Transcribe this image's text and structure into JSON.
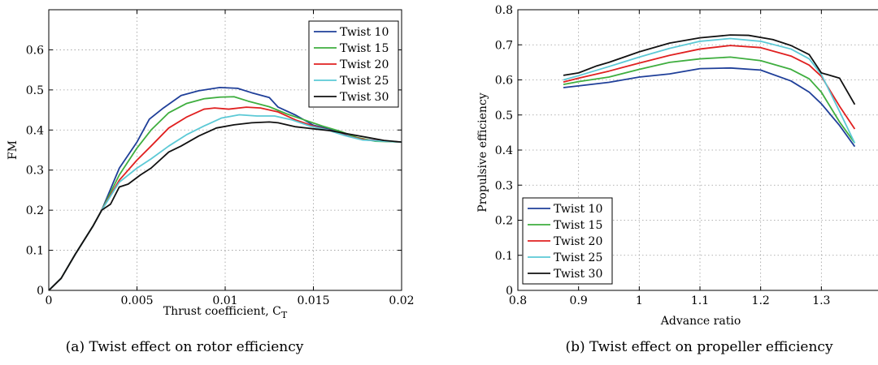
{
  "chart_data": [
    {
      "type": "line",
      "caption": "(a) Twist effect on rotor efficiency",
      "xlabel": "Thrust coefficient, C",
      "xlabel_sub": "T",
      "ylabel": "FM",
      "xlim": [
        0,
        0.02
      ],
      "ylim": [
        0,
        0.7
      ],
      "xticks": [
        0,
        0.005,
        0.01,
        0.015,
        0.02
      ],
      "xtick_labels": [
        "0",
        "0.005",
        "0.01",
        "0.015",
        "0.02"
      ],
      "yticks": [
        0,
        0.1,
        0.2,
        0.3,
        0.4,
        0.5,
        0.6
      ],
      "ytick_labels": [
        "0",
        "0.1",
        "0.2",
        "0.3",
        "0.4",
        "0.5",
        "0.6"
      ],
      "grid": true,
      "legend_position": "top-right",
      "series": [
        {
          "name": "Twist 10",
          "color": "#1f3f99",
          "points": [
            [
              0,
              0
            ],
            [
              0.0007,
              0.03
            ],
            [
              0.0015,
              0.09
            ],
            [
              0.0025,
              0.16
            ],
            [
              0.003,
              0.2
            ],
            [
              0.004,
              0.305
            ],
            [
              0.005,
              0.37
            ],
            [
              0.0057,
              0.427
            ],
            [
              0.0065,
              0.455
            ],
            [
              0.0075,
              0.486
            ],
            [
              0.0085,
              0.498
            ],
            [
              0.0097,
              0.506
            ],
            [
              0.0107,
              0.504
            ],
            [
              0.0115,
              0.493
            ],
            [
              0.0125,
              0.481
            ],
            [
              0.013,
              0.457
            ],
            [
              0.014,
              0.437
            ],
            [
              0.015,
              0.412
            ],
            [
              0.016,
              0.401
            ],
            [
              0.017,
              0.385
            ],
            [
              0.018,
              0.376
            ],
            [
              0.019,
              0.372
            ],
            [
              0.02,
              0.37
            ]
          ]
        },
        {
          "name": "Twist 15",
          "color": "#3fae3f",
          "points": [
            [
              0,
              0
            ],
            [
              0.0007,
              0.03
            ],
            [
              0.0015,
              0.09
            ],
            [
              0.0025,
              0.16
            ],
            [
              0.003,
              0.2
            ],
            [
              0.004,
              0.288
            ],
            [
              0.005,
              0.355
            ],
            [
              0.0058,
              0.4
            ],
            [
              0.0068,
              0.443
            ],
            [
              0.0078,
              0.466
            ],
            [
              0.0088,
              0.478
            ],
            [
              0.0097,
              0.482
            ],
            [
              0.0105,
              0.483
            ],
            [
              0.0113,
              0.472
            ],
            [
              0.0125,
              0.458
            ],
            [
              0.0135,
              0.44
            ],
            [
              0.0145,
              0.425
            ],
            [
              0.0155,
              0.41
            ],
            [
              0.0165,
              0.397
            ],
            [
              0.0175,
              0.381
            ],
            [
              0.0185,
              0.372
            ],
            [
              0.02,
              0.37
            ]
          ]
        },
        {
          "name": "Twist 20",
          "color": "#e02020",
          "points": [
            [
              0,
              0
            ],
            [
              0.0007,
              0.03
            ],
            [
              0.0015,
              0.09
            ],
            [
              0.0025,
              0.16
            ],
            [
              0.003,
              0.2
            ],
            [
              0.004,
              0.275
            ],
            [
              0.005,
              0.325
            ],
            [
              0.0058,
              0.36
            ],
            [
              0.0068,
              0.405
            ],
            [
              0.0078,
              0.432
            ],
            [
              0.0088,
              0.452
            ],
            [
              0.0094,
              0.455
            ],
            [
              0.0102,
              0.452
            ],
            [
              0.0112,
              0.457
            ],
            [
              0.012,
              0.455
            ],
            [
              0.013,
              0.445
            ],
            [
              0.014,
              0.425
            ],
            [
              0.015,
              0.41
            ],
            [
              0.016,
              0.398
            ],
            [
              0.017,
              0.384
            ],
            [
              0.018,
              0.375
            ],
            [
              0.02,
              0.37
            ]
          ]
        },
        {
          "name": "Twist 25",
          "color": "#5cc9d6",
          "points": [
            [
              0,
              0
            ],
            [
              0.0007,
              0.03
            ],
            [
              0.0015,
              0.09
            ],
            [
              0.0025,
              0.16
            ],
            [
              0.003,
              0.2
            ],
            [
              0.004,
              0.27
            ],
            [
              0.005,
              0.305
            ],
            [
              0.0058,
              0.328
            ],
            [
              0.0068,
              0.36
            ],
            [
              0.0078,
              0.388
            ],
            [
              0.0088,
              0.41
            ],
            [
              0.0098,
              0.43
            ],
            [
              0.0108,
              0.438
            ],
            [
              0.0118,
              0.435
            ],
            [
              0.0128,
              0.435
            ],
            [
              0.0138,
              0.425
            ],
            [
              0.0148,
              0.41
            ],
            [
              0.0158,
              0.4
            ],
            [
              0.0168,
              0.386
            ],
            [
              0.0178,
              0.375
            ],
            [
              0.019,
              0.372
            ],
            [
              0.02,
              0.37
            ]
          ]
        },
        {
          "name": "Twist 30",
          "color": "#111111",
          "points": [
            [
              0,
              0
            ],
            [
              0.0007,
              0.03
            ],
            [
              0.0015,
              0.09
            ],
            [
              0.0025,
              0.16
            ],
            [
              0.003,
              0.2
            ],
            [
              0.0035,
              0.215
            ],
            [
              0.004,
              0.258
            ],
            [
              0.0045,
              0.265
            ],
            [
              0.0052,
              0.288
            ],
            [
              0.0058,
              0.305
            ],
            [
              0.0068,
              0.345
            ],
            [
              0.0075,
              0.36
            ],
            [
              0.0085,
              0.385
            ],
            [
              0.0095,
              0.405
            ],
            [
              0.0105,
              0.413
            ],
            [
              0.0115,
              0.418
            ],
            [
              0.0125,
              0.42
            ],
            [
              0.013,
              0.418
            ],
            [
              0.014,
              0.408
            ],
            [
              0.015,
              0.403
            ],
            [
              0.016,
              0.398
            ],
            [
              0.017,
              0.39
            ],
            [
              0.018,
              0.382
            ],
            [
              0.019,
              0.374
            ],
            [
              0.02,
              0.37
            ]
          ]
        }
      ]
    },
    {
      "type": "line",
      "caption": "(b) Twist effect on propeller efficiency",
      "xlabel": "Advance ratio",
      "ylabel": "Propulsive efficiency",
      "xlim": [
        0.8,
        1.4
      ],
      "ylim": [
        0,
        0.8
      ],
      "xticks": [
        0.8,
        0.9,
        1.0,
        1.1,
        1.2,
        1.3
      ],
      "xtick_labels": [
        "0.8",
        "0.9",
        "1",
        "1.1",
        "1.2",
        "1.3"
      ],
      "yticks": [
        0,
        0.1,
        0.2,
        0.3,
        0.4,
        0.5,
        0.6,
        0.7,
        0.8
      ],
      "ytick_labels": [
        "0",
        "0.1",
        "0.2",
        "0.3",
        "0.4",
        "0.5",
        "0.6",
        "0.7",
        "0.8"
      ],
      "grid": true,
      "legend_position": "bottom-left",
      "series": [
        {
          "name": "Twist 10",
          "color": "#1f3f99",
          "points": [
            [
              0.875,
              0.578
            ],
            [
              0.9,
              0.583
            ],
            [
              0.95,
              0.593
            ],
            [
              1.0,
              0.608
            ],
            [
              1.05,
              0.617
            ],
            [
              1.1,
              0.632
            ],
            [
              1.15,
              0.634
            ],
            [
              1.2,
              0.628
            ],
            [
              1.25,
              0.597
            ],
            [
              1.28,
              0.565
            ],
            [
              1.3,
              0.532
            ],
            [
              1.33,
              0.47
            ],
            [
              1.355,
              0.41
            ]
          ]
        },
        {
          "name": "Twist 15",
          "color": "#3fae3f",
          "points": [
            [
              0.875,
              0.587
            ],
            [
              0.9,
              0.595
            ],
            [
              0.95,
              0.608
            ],
            [
              1.0,
              0.63
            ],
            [
              1.05,
              0.65
            ],
            [
              1.1,
              0.66
            ],
            [
              1.15,
              0.665
            ],
            [
              1.2,
              0.655
            ],
            [
              1.25,
              0.63
            ],
            [
              1.28,
              0.603
            ],
            [
              1.3,
              0.565
            ],
            [
              1.33,
              0.48
            ],
            [
              1.355,
              0.42
            ]
          ]
        },
        {
          "name": "Twist 20",
          "color": "#e02020",
          "points": [
            [
              0.875,
              0.594
            ],
            [
              0.9,
              0.605
            ],
            [
              0.95,
              0.625
            ],
            [
              1.0,
              0.648
            ],
            [
              1.05,
              0.67
            ],
            [
              1.1,
              0.688
            ],
            [
              1.15,
              0.698
            ],
            [
              1.2,
              0.692
            ],
            [
              1.25,
              0.668
            ],
            [
              1.28,
              0.642
            ],
            [
              1.3,
              0.61
            ],
            [
              1.33,
              0.525
            ],
            [
              1.355,
              0.46
            ]
          ]
        },
        {
          "name": "Twist 25",
          "color": "#5cc9d6",
          "points": [
            [
              0.875,
              0.6
            ],
            [
              0.9,
              0.612
            ],
            [
              0.95,
              0.638
            ],
            [
              1.0,
              0.665
            ],
            [
              1.05,
              0.69
            ],
            [
              1.1,
              0.71
            ],
            [
              1.15,
              0.718
            ],
            [
              1.2,
              0.71
            ],
            [
              1.25,
              0.688
            ],
            [
              1.28,
              0.66
            ],
            [
              1.3,
              0.615
            ],
            [
              1.33,
              0.51
            ],
            [
              1.355,
              0.42
            ]
          ]
        },
        {
          "name": "Twist 30",
          "color": "#111111",
          "points": [
            [
              0.875,
              0.613
            ],
            [
              0.9,
              0.62
            ],
            [
              0.93,
              0.64
            ],
            [
              0.95,
              0.65
            ],
            [
              1.0,
              0.68
            ],
            [
              1.05,
              0.705
            ],
            [
              1.1,
              0.72
            ],
            [
              1.15,
              0.728
            ],
            [
              1.18,
              0.727
            ],
            [
              1.22,
              0.715
            ],
            [
              1.25,
              0.698
            ],
            [
              1.28,
              0.672
            ],
            [
              1.3,
              0.62
            ],
            [
              1.33,
              0.605
            ],
            [
              1.355,
              0.53
            ]
          ]
        }
      ]
    }
  ]
}
